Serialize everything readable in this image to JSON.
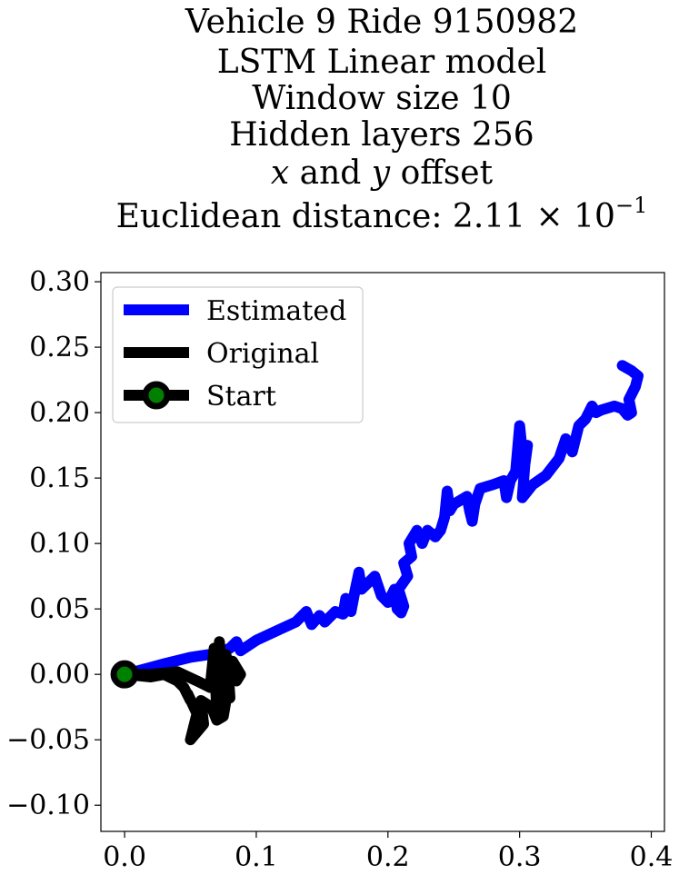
{
  "chart_data": {
    "type": "line",
    "title_lines": [
      "Vehicle 9 Ride 9150982",
      "LSTM Linear model",
      "Window size 10",
      "Hidden layers 256"
    ],
    "title_offset": {
      "x": "x",
      "mid": " and ",
      "y": "y",
      "rest": " offset"
    },
    "title_distance": {
      "prefix": "Euclidean distance: 2.11 × 10",
      "exponent": "−1"
    },
    "xlim": [
      -0.018,
      0.41
    ],
    "ylim": [
      -0.12,
      0.307
    ],
    "x_ticks": [
      {
        "value": 0.0,
        "label": "0.0"
      },
      {
        "value": 0.1,
        "label": "0.1"
      },
      {
        "value": 0.2,
        "label": "0.2"
      },
      {
        "value": 0.3,
        "label": "0.3"
      },
      {
        "value": 0.4,
        "label": "0.4"
      }
    ],
    "y_ticks": [
      {
        "value": 0.3,
        "label": "0.30"
      },
      {
        "value": 0.25,
        "label": "0.25"
      },
      {
        "value": 0.2,
        "label": "0.20"
      },
      {
        "value": 0.15,
        "label": "0.15"
      },
      {
        "value": 0.1,
        "label": "0.10"
      },
      {
        "value": 0.05,
        "label": "0.05"
      },
      {
        "value": 0.0,
        "label": "0.00"
      },
      {
        "value": -0.05,
        "label": "−0.05"
      },
      {
        "value": -0.1,
        "label": "−0.10"
      }
    ],
    "legend": {
      "position": "upper-left",
      "entries": [
        {
          "label": "Estimated",
          "color": "#0000ff",
          "marker": false
        },
        {
          "label": "Original",
          "color": "#000000",
          "marker": false
        },
        {
          "label": "Start",
          "color": "#000000",
          "marker": true,
          "marker_fill": "#008000"
        }
      ]
    },
    "series": [
      {
        "name": "Estimated",
        "color": "#0000ff",
        "points": [
          [
            0.0,
            0.0
          ],
          [
            0.015,
            0.004
          ],
          [
            0.03,
            0.008
          ],
          [
            0.05,
            0.013
          ],
          [
            0.07,
            0.016
          ],
          [
            0.08,
            0.02
          ],
          [
            0.085,
            0.025
          ],
          [
            0.088,
            0.018
          ],
          [
            0.1,
            0.026
          ],
          [
            0.115,
            0.033
          ],
          [
            0.13,
            0.04
          ],
          [
            0.138,
            0.048
          ],
          [
            0.142,
            0.038
          ],
          [
            0.148,
            0.045
          ],
          [
            0.152,
            0.04
          ],
          [
            0.16,
            0.048
          ],
          [
            0.166,
            0.046
          ],
          [
            0.168,
            0.058
          ],
          [
            0.172,
            0.048
          ],
          [
            0.175,
            0.064
          ],
          [
            0.178,
            0.078
          ],
          [
            0.18,
            0.065
          ],
          [
            0.185,
            0.07
          ],
          [
            0.19,
            0.075
          ],
          [
            0.195,
            0.06
          ],
          [
            0.2,
            0.055
          ],
          [
            0.205,
            0.065
          ],
          [
            0.207,
            0.05
          ],
          [
            0.21,
            0.047
          ],
          [
            0.212,
            0.052
          ],
          [
            0.208,
            0.065
          ],
          [
            0.215,
            0.075
          ],
          [
            0.212,
            0.085
          ],
          [
            0.218,
            0.09
          ],
          [
            0.216,
            0.1
          ],
          [
            0.222,
            0.11
          ],
          [
            0.226,
            0.1
          ],
          [
            0.23,
            0.11
          ],
          [
            0.236,
            0.105
          ],
          [
            0.24,
            0.11
          ],
          [
            0.243,
            0.12
          ],
          [
            0.245,
            0.14
          ],
          [
            0.247,
            0.125
          ],
          [
            0.25,
            0.13
          ],
          [
            0.26,
            0.136
          ],
          [
            0.262,
            0.125
          ],
          [
            0.264,
            0.117
          ],
          [
            0.266,
            0.13
          ],
          [
            0.27,
            0.142
          ],
          [
            0.28,
            0.145
          ],
          [
            0.288,
            0.148
          ],
          [
            0.29,
            0.135
          ],
          [
            0.293,
            0.148
          ],
          [
            0.297,
            0.155
          ],
          [
            0.3,
            0.19
          ],
          [
            0.302,
            0.17
          ],
          [
            0.306,
            0.175
          ],
          [
            0.304,
            0.16
          ],
          [
            0.302,
            0.135
          ],
          [
            0.31,
            0.145
          ],
          [
            0.32,
            0.152
          ],
          [
            0.33,
            0.165
          ],
          [
            0.335,
            0.18
          ],
          [
            0.34,
            0.17
          ],
          [
            0.345,
            0.19
          ],
          [
            0.35,
            0.195
          ],
          [
            0.355,
            0.205
          ],
          [
            0.358,
            0.2
          ],
          [
            0.362,
            0.202
          ],
          [
            0.372,
            0.205
          ],
          [
            0.378,
            0.203
          ],
          [
            0.382,
            0.198
          ],
          [
            0.385,
            0.2
          ],
          [
            0.383,
            0.21
          ],
          [
            0.388,
            0.22
          ],
          [
            0.39,
            0.228
          ],
          [
            0.385,
            0.232
          ],
          [
            0.378,
            0.236
          ]
        ]
      },
      {
        "name": "Original",
        "color": "#000000",
        "points": [
          [
            0.0,
            0.0
          ],
          [
            0.02,
            0.0
          ],
          [
            0.04,
            0.002
          ],
          [
            0.055,
            -0.005
          ],
          [
            0.065,
            -0.01
          ],
          [
            0.068,
            0.02
          ],
          [
            0.07,
            -0.03
          ],
          [
            0.072,
            0.025
          ],
          [
            0.075,
            -0.025
          ],
          [
            0.077,
            0.015
          ],
          [
            0.08,
            -0.018
          ],
          [
            0.078,
            0.012
          ],
          [
            0.085,
            -0.005
          ],
          [
            0.088,
            0.0
          ],
          [
            0.082,
            0.01
          ],
          [
            0.075,
            -0.032
          ],
          [
            0.07,
            -0.035
          ],
          [
            0.066,
            -0.025
          ],
          [
            0.058,
            -0.02
          ],
          [
            0.06,
            -0.038
          ],
          [
            0.05,
            -0.05
          ],
          [
            0.055,
            -0.03
          ],
          [
            0.048,
            -0.015
          ],
          [
            0.05,
            -0.02
          ],
          [
            0.045,
            -0.01
          ],
          [
            0.04,
            -0.005
          ],
          [
            0.03,
            0.0
          ],
          [
            0.02,
            -0.002
          ],
          [
            0.0,
            0.0
          ]
        ]
      }
    ],
    "start_point": [
      0.0,
      0.0
    ]
  }
}
